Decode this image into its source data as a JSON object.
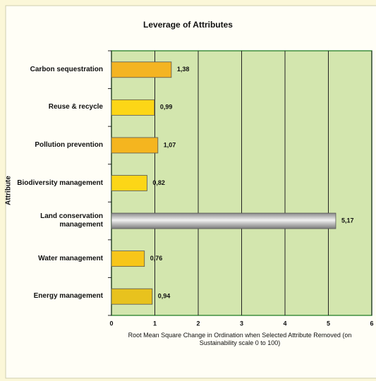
{
  "chart_data": {
    "type": "bar",
    "orientation": "horizontal",
    "title": "Leverage of Attributes",
    "x_label": "Root Mean Square Change in Ordination when Selected Attribute Removed (on Sustainability scale 0 to 100)",
    "y_label": "Attribute",
    "categories": [
      "Carbon sequestration",
      "Reuse & recycle",
      "Pollution prevention",
      "Biodiversity management",
      "Land conservation management",
      "Water management",
      "Energy management"
    ],
    "values": [
      1.38,
      0.99,
      1.07,
      0.82,
      5.17,
      0.76,
      0.94
    ],
    "value_labels": [
      "1,38",
      "0,99",
      "1,07",
      "0,82",
      "5,17",
      "0,76",
      "0,94"
    ],
    "colors": [
      "#f4b422",
      "#fcd617",
      "#f5b51f",
      "#fcd617",
      "url(#grey)",
      "#f7c61a",
      "#e8c21e"
    ],
    "xlim": [
      0,
      6
    ],
    "xticks": [
      0,
      1,
      2,
      3,
      4,
      5,
      6
    ],
    "grid": true
  }
}
